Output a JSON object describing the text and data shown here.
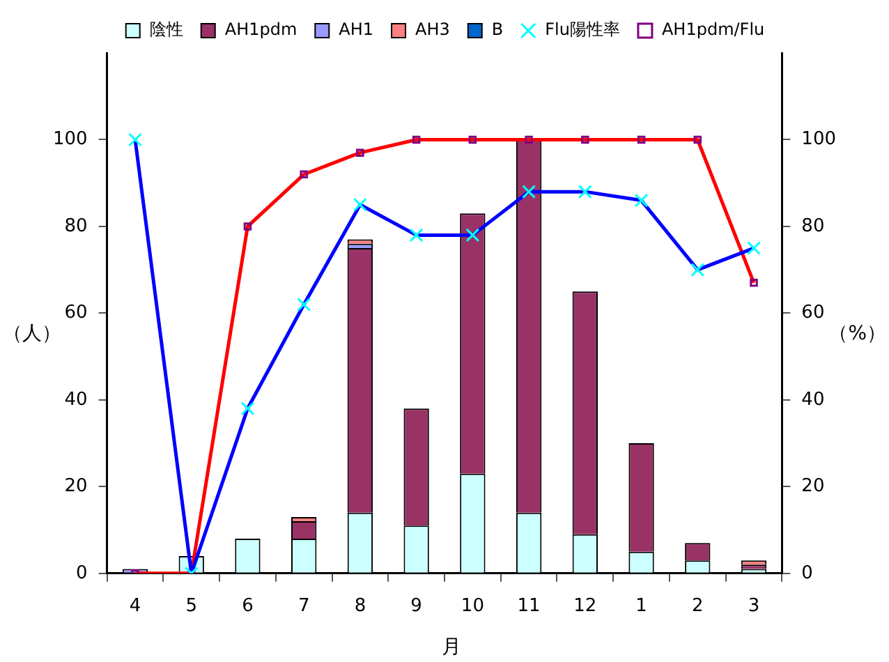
{
  "chart_data": {
    "type": "bar",
    "stacked": true,
    "xlabel": "月",
    "ylabel": "（人）",
    "y2label": "（%）",
    "categories": [
      "4",
      "5",
      "6",
      "7",
      "8",
      "9",
      "10",
      "11",
      "12",
      "1",
      "2",
      "3"
    ],
    "series": [
      {
        "name": "陰性",
        "color": "#ccffff",
        "values": [
          0,
          4,
          8,
          8,
          14,
          11,
          23,
          14,
          9,
          5,
          3,
          1
        ]
      },
      {
        "name": "AH1pdm",
        "color": "#993366",
        "values": [
          0,
          0,
          0,
          4,
          61,
          27,
          60,
          86,
          56,
          25,
          4,
          1
        ]
      },
      {
        "name": "AH1",
        "color": "#9999ff",
        "values": [
          1,
          0,
          0,
          0,
          1,
          0,
          0,
          0,
          0,
          0,
          0,
          0
        ]
      },
      {
        "name": "AH3",
        "color": "#ff8080",
        "values": [
          0,
          0,
          0,
          1,
          1,
          0,
          0,
          0,
          0,
          0,
          0,
          1
        ]
      },
      {
        "name": "B",
        "color": "#0066cc",
        "values": [
          0,
          0,
          0,
          0,
          0,
          0,
          0,
          0,
          0,
          0,
          0,
          0
        ]
      },
      {
        "name": "Flu陽性率",
        "type": "line",
        "axis": "y2",
        "color": "#0000ff",
        "marker": "cross",
        "values": [
          100,
          0,
          38,
          62,
          85,
          78,
          78,
          88,
          88,
          86,
          70,
          75
        ]
      },
      {
        "name": "AH1pdm/Flu",
        "type": "line",
        "axis": "y2",
        "color": "#ff0000",
        "marker": "square",
        "values": [
          0,
          0,
          80,
          92,
          97,
          100,
          100,
          100,
          100,
          100,
          100,
          67
        ]
      }
    ],
    "ylim": [
      0,
      120
    ],
    "yticks": [
      0,
      20,
      40,
      60,
      80,
      100
    ],
    "y2lim": [
      0,
      120
    ],
    "y2ticks": [
      0,
      20,
      40,
      60,
      80,
      100
    ],
    "grid": false,
    "legend": "top",
    "line_style": "solid"
  }
}
